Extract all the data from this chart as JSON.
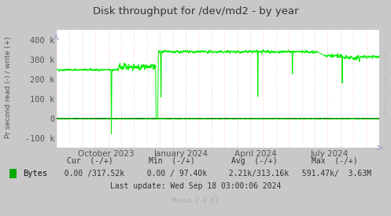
{
  "title": "Disk throughput for /dev/md2 - by year",
  "ylabel": "Pr second read (-) / write (+)",
  "background_color": "#c8c8c8",
  "plot_bg_color": "#ffffff",
  "grid_color_major": "#ffffff",
  "grid_color_minor": "#ffaaaa",
  "line_color": "#00ee00",
  "zero_line_color": "#000000",
  "axis_label_color": "#555555",
  "title_color": "#333333",
  "legend_label": "Bytes",
  "legend_color": "#00aa00",
  "cur_neg": "0.00",
  "cur_pos": "317.52k",
  "min_neg": "0.00",
  "min_pos": "97.40k",
  "avg_neg": "2.21k",
  "avg_pos": "313.16k",
  "max_neg": "591.47k",
  "max_pos": "3.63M",
  "last_update": "Last update: Wed Sep 18 03:00:06 2024",
  "munin_version": "Munin 2.0.67",
  "rrdtool_label": "RRDTOOL / TOBI OETIKER",
  "x_tick_labels": [
    "October 2023",
    "January 2024",
    "April 2024",
    "July 2024"
  ],
  "ylim": [
    -150000,
    450000
  ],
  "y_ticks": [
    -100000,
    0,
    100000,
    200000,
    300000,
    400000
  ],
  "y_tick_labels": [
    "-100 k",
    "0",
    "100 k",
    "200 k",
    "300 k",
    "400 k"
  ]
}
